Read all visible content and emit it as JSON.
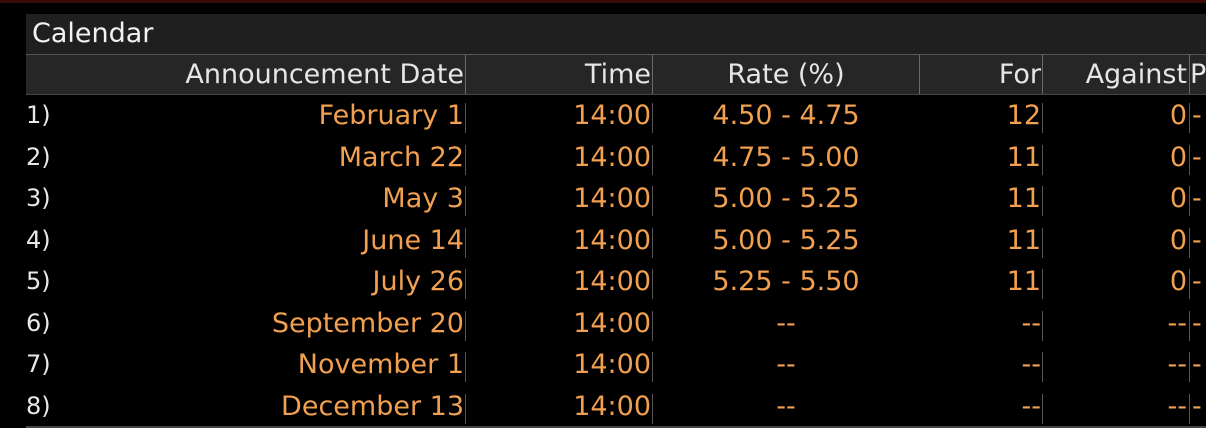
{
  "panel": {
    "title": "Calendar",
    "columns": {
      "date": "Announcement Date",
      "time": "Time",
      "rate": "Rate (%)",
      "for": "For",
      "against": "Against",
      "extra": "P"
    },
    "rows": [
      {
        "index": "1)",
        "date": "February 1",
        "time": "14:00",
        "rate": "4.50 - 4.75",
        "for": "12",
        "against": "0",
        "extra": "-"
      },
      {
        "index": "2)",
        "date": "March 22",
        "time": "14:00",
        "rate": "4.75 - 5.00",
        "for": "11",
        "against": "0",
        "extra": "-"
      },
      {
        "index": "3)",
        "date": "May 3",
        "time": "14:00",
        "rate": "5.00 - 5.25",
        "for": "11",
        "against": "0",
        "extra": "-"
      },
      {
        "index": "4)",
        "date": "June 14",
        "time": "14:00",
        "rate": "5.00 - 5.25",
        "for": "11",
        "against": "0",
        "extra": "-"
      },
      {
        "index": "5)",
        "date": "July 26",
        "time": "14:00",
        "rate": "5.25 - 5.50",
        "for": "11",
        "against": "0",
        "extra": "-"
      },
      {
        "index": "6)",
        "date": "September 20",
        "time": "14:00",
        "rate": "--",
        "for": "--",
        "against": "--",
        "extra": "-"
      },
      {
        "index": "7)",
        "date": "November 1",
        "time": "14:00",
        "rate": "--",
        "for": "--",
        "against": "--",
        "extra": "-"
      },
      {
        "index": "8)",
        "date": "December 13",
        "time": "14:00",
        "rate": "--",
        "for": "--",
        "against": "--",
        "extra": "-"
      }
    ]
  },
  "colors": {
    "background": "#000000",
    "value_text": "#f0a050",
    "header_bg": "#262626",
    "title_bg": "#1f1f1f"
  }
}
